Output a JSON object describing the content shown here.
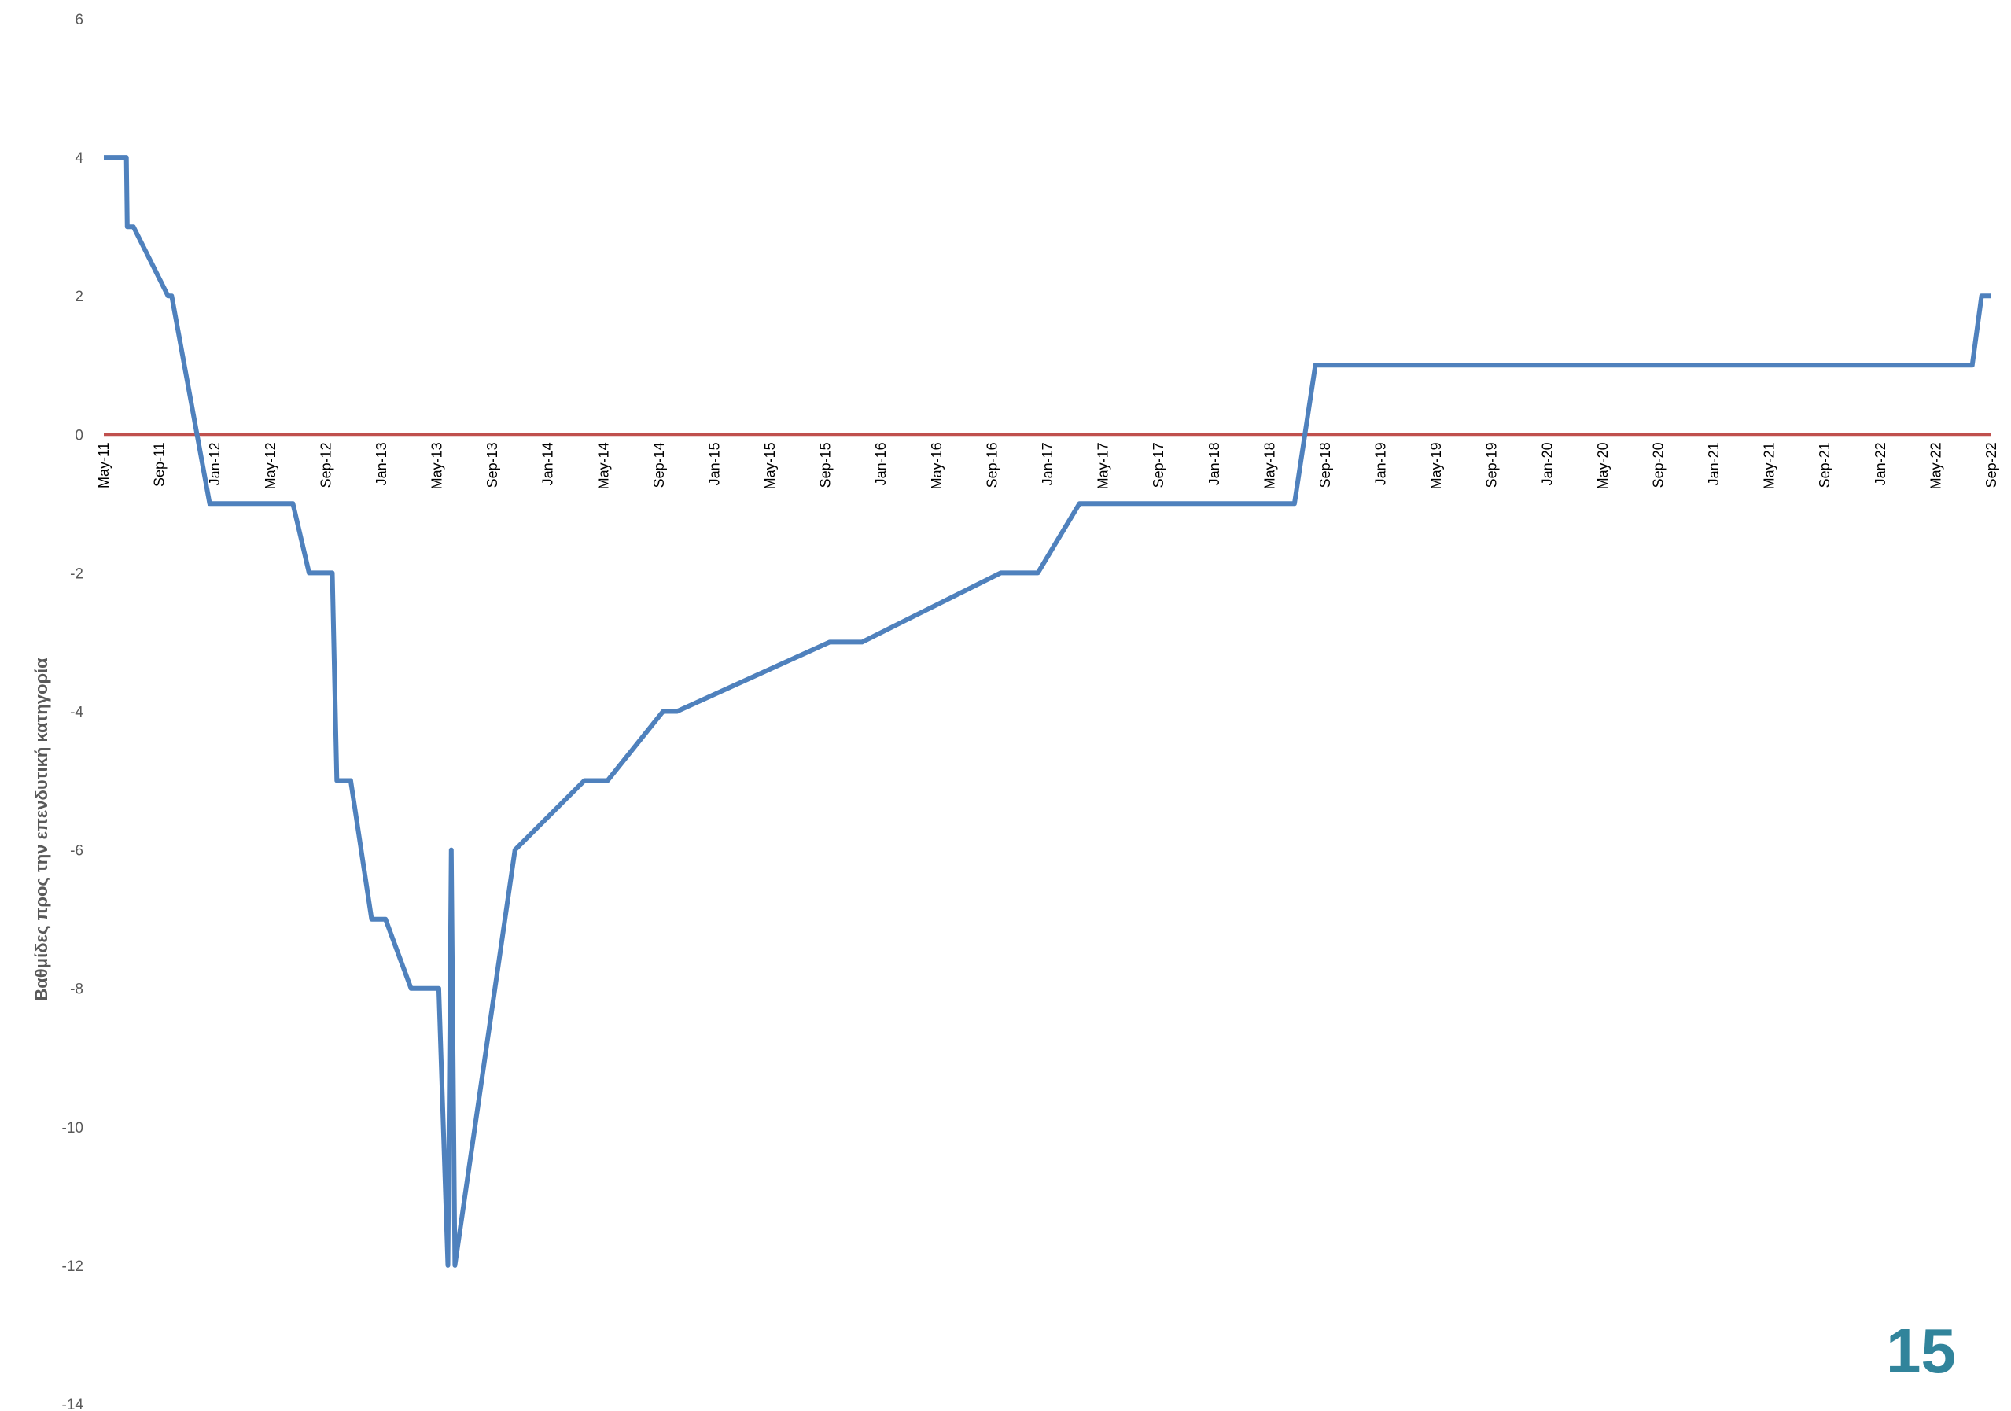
{
  "page_number": "15",
  "colors": {
    "series": "#4F81BD",
    "zero_line": "#C0504D",
    "page_number": "#31849B"
  },
  "chart_data": {
    "type": "line",
    "ylabel": "Βαθμίδες προς την επενδυτική κατηγορία",
    "ylim": [
      -14,
      6
    ],
    "yticks": [
      6,
      4,
      2,
      0,
      -2,
      -4,
      -6,
      -8,
      -10,
      -12,
      -14
    ],
    "xlim": [
      "2011-05",
      "2022-09"
    ],
    "xticks": [
      "May-11",
      "Sep-11",
      "Jan-12",
      "May-12",
      "Sep-12",
      "Jan-13",
      "May-13",
      "Sep-13",
      "Jan-14",
      "May-14",
      "Sep-14",
      "Jan-15",
      "May-15",
      "Sep-15",
      "Jan-16",
      "May-16",
      "Sep-16",
      "Jan-17",
      "May-17",
      "Sep-17",
      "Jan-18",
      "May-18",
      "Sep-18",
      "Jan-19",
      "May-19",
      "Sep-19",
      "Jan-20",
      "May-20",
      "Sep-20",
      "Jan-21",
      "May-21",
      "Sep-21",
      "Jan-22",
      "May-22",
      "Sep-22"
    ],
    "grid": false,
    "reference_line": {
      "y": 0
    },
    "series": [
      {
        "points": [
          [
            "2011-05",
            4
          ],
          [
            "2011-06-20",
            4
          ],
          [
            "2011-06-22",
            3
          ],
          [
            "2011-07-05",
            3
          ],
          [
            "2011-09-20",
            2
          ],
          [
            "2011-09-28",
            2
          ],
          [
            "2011-12-20",
            -1
          ],
          [
            "2012-06-20",
            -1
          ],
          [
            "2012-07-25",
            -2
          ],
          [
            "2012-09-15",
            -2
          ],
          [
            "2012-09-25",
            -5
          ],
          [
            "2012-10-25",
            -5
          ],
          [
            "2012-12-10",
            -7
          ],
          [
            "2013-01-10",
            -7
          ],
          [
            "2013-03-05",
            -8
          ],
          [
            "2013-05-05",
            -8
          ],
          [
            "2013-05-25",
            -12
          ],
          [
            "2013-06-02",
            -6
          ],
          [
            "2013-06-10",
            -12
          ],
          [
            "2013-10-20",
            -6
          ],
          [
            "2014-03-20",
            -5
          ],
          [
            "2014-05-10",
            -5
          ],
          [
            "2014-09-10",
            -4
          ],
          [
            "2014-10-10",
            -4
          ],
          [
            "2015-09-10",
            -3
          ],
          [
            "2015-11-20",
            -3
          ],
          [
            "2016-09-20",
            -2
          ],
          [
            "2016-12-10",
            -2
          ],
          [
            "2017-03-10",
            -1
          ],
          [
            "2018-06-25",
            -1
          ],
          [
            "2018-08-10",
            1
          ],
          [
            "2022-07-20",
            1
          ],
          [
            "2022-08-10",
            2
          ],
          [
            "2022-09-01",
            2
          ]
        ]
      }
    ]
  }
}
